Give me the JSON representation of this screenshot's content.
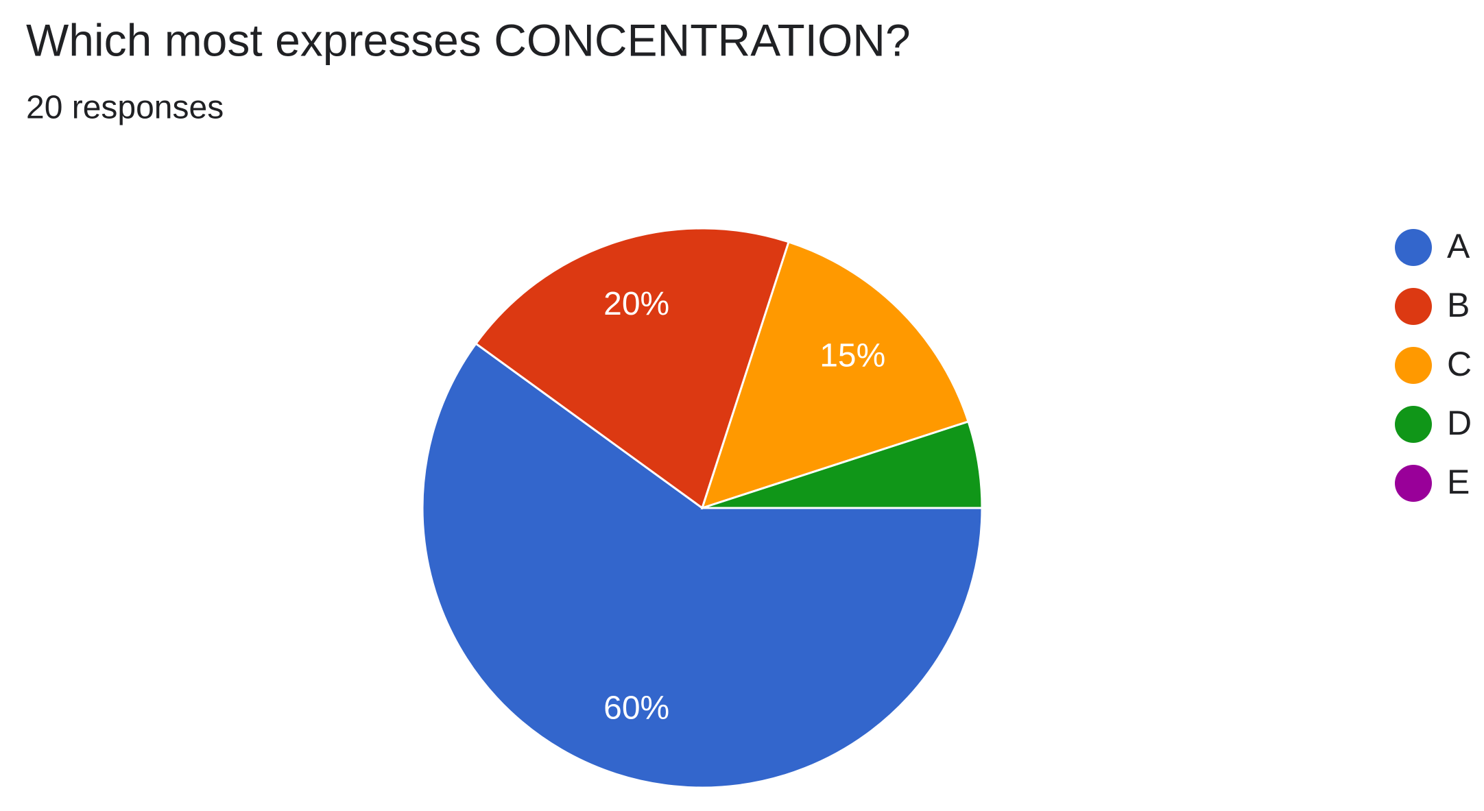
{
  "chart_data": {
    "type": "pie",
    "title": "Which most expresses CONCENTRATION?",
    "subtitle": "20 responses",
    "categories": [
      "A",
      "B",
      "C",
      "D",
      "E"
    ],
    "values": [
      60,
      20,
      15,
      5,
      0
    ],
    "value_labels": [
      "60%",
      "20%",
      "15%",
      null,
      null
    ],
    "colors": [
      "#3366cc",
      "#dc3912",
      "#ff9900",
      "#109618",
      "#990099"
    ],
    "legend": "right"
  }
}
